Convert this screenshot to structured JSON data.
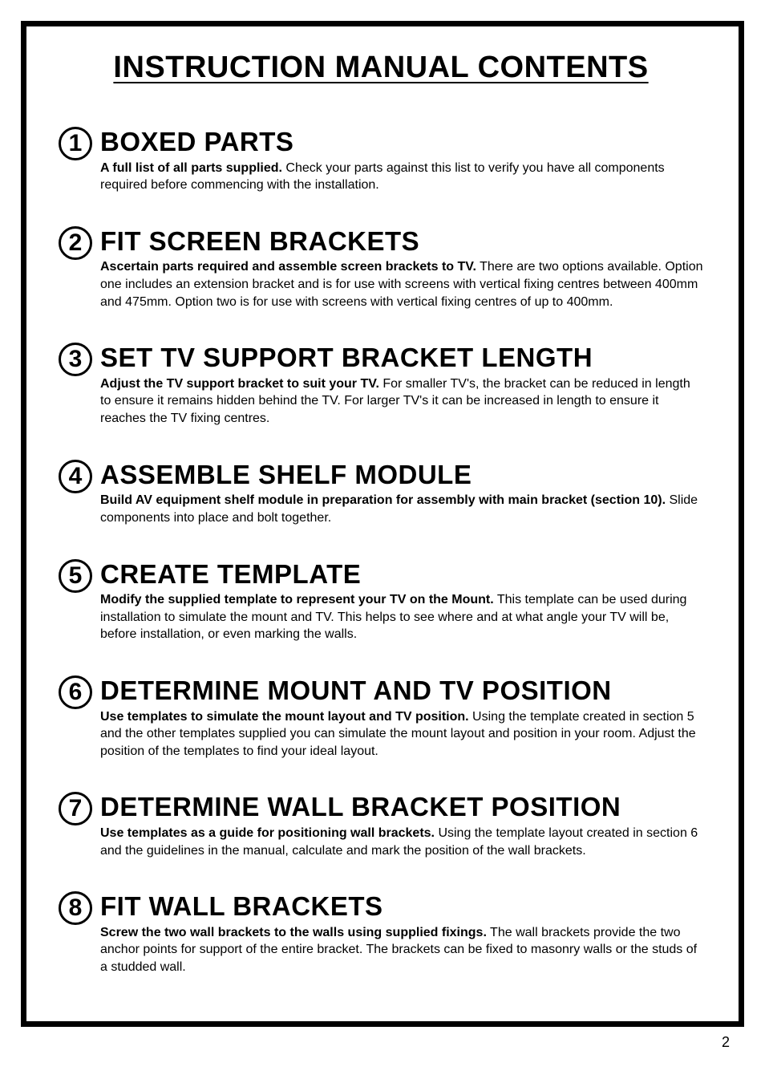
{
  "page": {
    "title": "INSTRUCTION MANUAL CONTENTS",
    "page_number": "2"
  },
  "sections": [
    {
      "num": "1",
      "title": "BOXED PARTS",
      "bold": "A full list of all parts supplied.",
      "text": " Check your parts against this list to verify you have all components required before commencing with the installation."
    },
    {
      "num": "2",
      "title": "FIT SCREEN BRACKETS",
      "bold": "Ascertain parts required and assemble screen brackets to TV.",
      "text": " There are two options available. Option one includes an extension bracket and is for use with screens with vertical fixing centres between 400mm and 475mm. Option two is for use with screens with vertical fixing centres of up to 400mm."
    },
    {
      "num": "3",
      "title": "SET TV SUPPORT BRACKET LENGTH",
      "bold": "Adjust the TV support bracket to suit your TV.",
      "text": " For smaller TV's, the bracket can be reduced in length to ensure it remains hidden behind the TV. For larger TV's it can be increased in length to ensure it reaches the TV fixing centres."
    },
    {
      "num": "4",
      "title": "ASSEMBLE SHELF MODULE",
      "bold": "Build AV equipment shelf module in preparation for assembly with main bracket (section 10).",
      "text": " Slide components into place and bolt together."
    },
    {
      "num": "5",
      "title": "CREATE TEMPLATE",
      "bold": "Modify the supplied template to represent your TV on the Mount.",
      "text": " This template can be used during installation to simulate the mount and TV. This helps to see where and at what angle your TV will be, before installation, or even marking the walls."
    },
    {
      "num": "6",
      "title": "DETERMINE MOUNT AND TV POSITION",
      "bold": "Use templates to simulate the mount layout and TV position.",
      "text": " Using the template created in section 5 and the other templates supplied you can simulate the mount layout and position in your room. Adjust the position of the templates to find your ideal layout."
    },
    {
      "num": "7",
      "title": "DETERMINE WALL BRACKET POSITION",
      "bold": "Use templates as a guide for positioning wall brackets.",
      "text": " Using the template layout created in section 6 and the guidelines in the manual, calculate and mark the position of the wall brackets."
    },
    {
      "num": "8",
      "title": "FIT WALL BRACKETS",
      "bold": "Screw the two wall brackets to the walls using supplied fixings.",
      "text": " The wall brackets provide the two anchor points for support of the entire bracket. The brackets can be fixed to masonry walls or the studs of a studded wall."
    }
  ]
}
